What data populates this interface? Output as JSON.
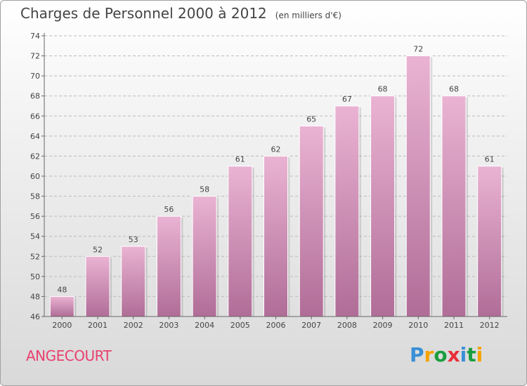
{
  "header": {
    "title": "Charges de Personnel 2000 à 2012",
    "subtitle": "(en milliers d'€)"
  },
  "footer": {
    "commune": "ANGECOURT",
    "logo": {
      "text": "Proxiti",
      "letter_colors": [
        "#3a8fd6",
        "#f5a300",
        "#1b9e3e",
        "#e8303a",
        "#3a8fd6",
        "#1b9e3e",
        "#f5a300"
      ]
    }
  },
  "colors": {
    "bar_light": "#eab3d3",
    "bar_dark": "#b06d97",
    "grid": "#bbbbbb",
    "axis": "#666666",
    "commune_text": "#e8406e"
  },
  "chart_data": {
    "type": "bar",
    "title": "Charges de Personnel 2000 à 2012",
    "subtitle": "(en milliers d'€)",
    "categories": [
      "2000",
      "2001",
      "2002",
      "2003",
      "2004",
      "2005",
      "2006",
      "2007",
      "2008",
      "2009",
      "2010",
      "2011",
      "2012"
    ],
    "values": [
      48,
      52,
      53,
      56,
      58,
      61,
      62,
      65,
      67,
      68,
      72,
      68,
      61
    ],
    "ylim": [
      46,
      74
    ],
    "yticks": [
      46,
      48,
      50,
      52,
      54,
      56,
      58,
      60,
      62,
      64,
      66,
      68,
      70,
      72,
      74
    ],
    "xlabel": "",
    "ylabel": "",
    "grid": true,
    "data_labels": true
  }
}
